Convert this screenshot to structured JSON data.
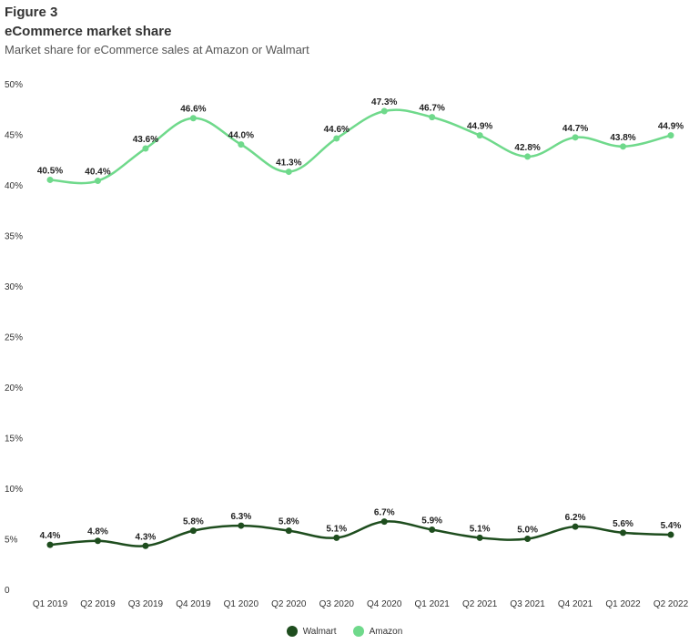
{
  "header": {
    "figure_label": "Figure 3",
    "title": "eCommerce market share",
    "subtitle": "Market share for eCommerce sales at Amazon or Walmart"
  },
  "chart_data": {
    "type": "line",
    "title": "eCommerce market share",
    "subtitle": "Market share for eCommerce sales at Amazon or Walmart",
    "categories": [
      "Q1 2019",
      "Q2 2019",
      "Q3 2019",
      "Q4 2019",
      "Q1 2020",
      "Q2 2020",
      "Q3 2020",
      "Q4 2020",
      "Q1 2021",
      "Q2 2021",
      "Q3 2021",
      "Q4 2021",
      "Q1 2022",
      "Q2 2022"
    ],
    "yticks": [
      "0",
      "5%",
      "10%",
      "15%",
      "20%",
      "25%",
      "30%",
      "35%",
      "40%",
      "45%",
      "50%"
    ],
    "ylim": [
      0,
      50
    ],
    "grid": false,
    "legend_position": "bottom",
    "series": [
      {
        "name": "Walmart",
        "color": "#1e4d1e",
        "values": [
          4.4,
          4.8,
          4.3,
          5.8,
          6.3,
          5.8,
          5.1,
          6.7,
          5.9,
          5.1,
          5.0,
          6.2,
          5.6,
          5.4
        ],
        "labels": [
          "4.4%",
          "4.8%",
          "4.3%",
          "5.8%",
          "6.3%",
          "5.8%",
          "5.1%",
          "6.7%",
          "5.9%",
          "5.1%",
          "5.0%",
          "6.2%",
          "5.6%",
          "5.4%"
        ]
      },
      {
        "name": "Amazon",
        "color": "#6fd98b",
        "values": [
          40.5,
          40.4,
          43.6,
          46.6,
          44.0,
          41.3,
          44.6,
          47.3,
          46.7,
          44.9,
          42.8,
          44.7,
          43.8,
          44.9
        ],
        "labels": [
          "40.5%",
          "40.4%",
          "43.6%",
          "46.6%",
          "44.0%",
          "41.3%",
          "44.6%",
          "47.3%",
          "46.7%",
          "44.9%",
          "42.8%",
          "44.7%",
          "43.8%",
          "44.9%"
        ]
      }
    ]
  },
  "legend": {
    "items": [
      {
        "label": "Walmart",
        "color": "#1e4d1e"
      },
      {
        "label": "Amazon",
        "color": "#6fd98b"
      }
    ]
  }
}
